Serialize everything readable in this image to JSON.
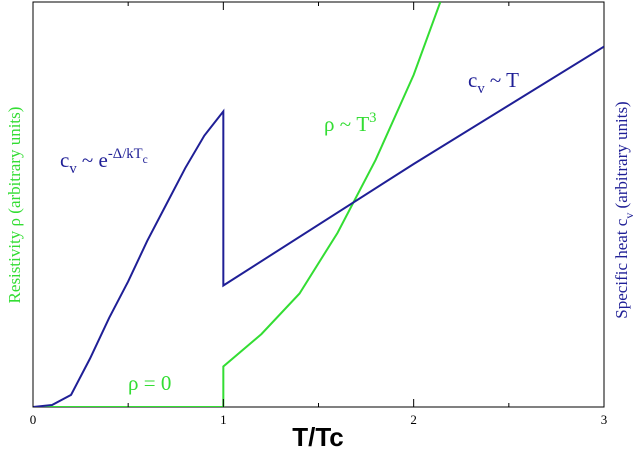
{
  "chart_data": {
    "type": "line",
    "xlabel": "T/Tc",
    "ylabel": {
      "color": "#33dd33",
      "parts": [
        {
          "text": "Resistivity ρ (arbitrary units)"
        }
      ]
    },
    "y2label": {
      "color": "#1f1f96",
      "parts": [
        {
          "text": "Specific heat c"
        },
        {
          "text": "v",
          "style": "sub"
        },
        {
          "text": " (arbitrary units)"
        }
      ]
    },
    "xlim": [
      0,
      3
    ],
    "xticks": [
      0,
      1,
      2,
      3
    ],
    "xminorticks": [
      0.5,
      1.5,
      2.5
    ],
    "ylim": [
      0,
      1
    ],
    "y2lim": [
      0,
      1
    ],
    "series": [
      {
        "name": "Resistivity",
        "color": "#33dd33",
        "axis": "y",
        "x": [
          0,
          1,
          1,
          1.2,
          1.4,
          1.6,
          1.8,
          2.0,
          2.14
        ],
        "values": [
          0,
          0,
          0.1,
          0.18,
          0.28,
          0.43,
          0.61,
          0.82,
          1.0
        ]
      },
      {
        "name": "Specific heat",
        "color": "#1f1f96",
        "axis": "y2",
        "x": [
          0,
          0.1,
          0.2,
          0.3,
          0.4,
          0.5,
          0.6,
          0.7,
          0.8,
          0.9,
          1.0,
          1.0,
          2.0,
          3.0
        ],
        "values": [
          0,
          0.005,
          0.03,
          0.12,
          0.22,
          0.31,
          0.41,
          0.5,
          0.59,
          0.67,
          0.73,
          0.3,
          0.6,
          0.89
        ]
      }
    ],
    "annotations": [
      {
        "color": "#1f1f96",
        "parts": [
          {
            "text": "c"
          },
          {
            "text": "v",
            "style": "sub"
          },
          {
            "text": " ~ e"
          },
          {
            "text": "-Δ/kT",
            "style": "sup"
          },
          {
            "text": "c",
            "style": "supsub"
          }
        ]
      },
      {
        "color": "#33dd33",
        "parts": [
          {
            "text": "ρ ~ T"
          },
          {
            "text": "3",
            "style": "sup"
          }
        ]
      },
      {
        "color": "#1f1f96",
        "parts": [
          {
            "text": "c"
          },
          {
            "text": "v",
            "style": "sub"
          },
          {
            "text": " ~ T"
          }
        ]
      },
      {
        "color": "#33dd33",
        "parts": [
          {
            "text": "ρ = 0"
          }
        ]
      }
    ]
  }
}
